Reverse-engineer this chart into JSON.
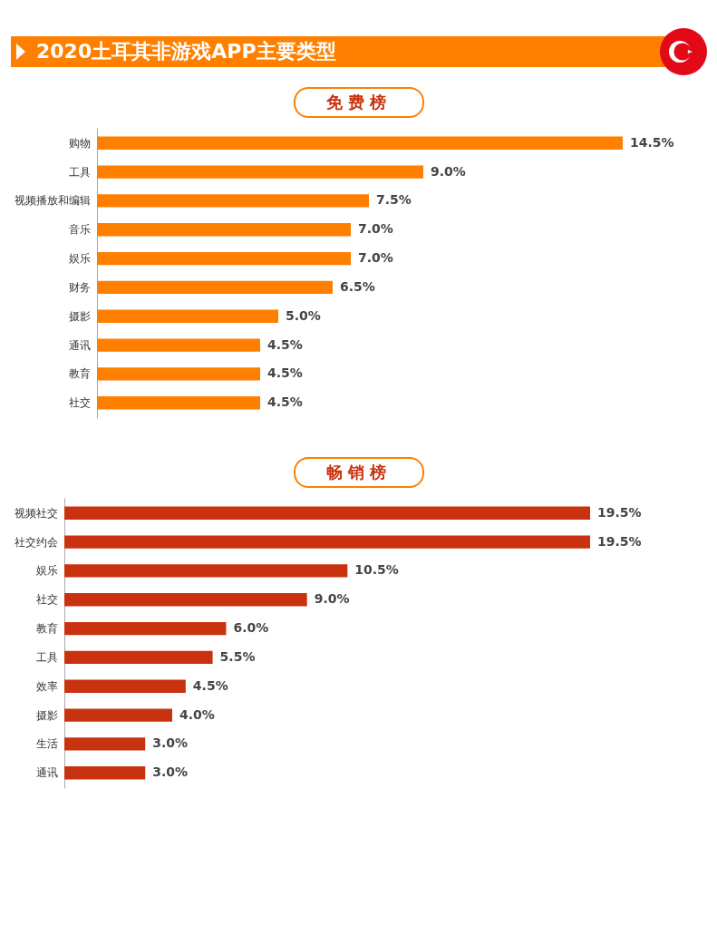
{
  "chart_data": [
    {
      "type": "bar",
      "orientation": "horizontal",
      "title": "2020土耳其非游戏APP主要类型",
      "subtitle": "免费榜",
      "categories": [
        "购物",
        "工具",
        "视频播放和编辑",
        "音乐",
        "娱乐",
        "财务",
        "摄影",
        "通讯",
        "教育",
        "社交"
      ],
      "values": [
        14.5,
        9.0,
        7.5,
        7.0,
        7.0,
        6.5,
        5.0,
        4.5,
        4.5,
        4.5
      ],
      "value_labels": [
        "14.5%",
        "9.0%",
        "7.5%",
        "7.0%",
        "7.0%",
        "6.5%",
        "5.0%",
        "4.5%",
        "4.5%",
        "4.5%"
      ],
      "color": "#ff7f00"
    },
    {
      "type": "bar",
      "orientation": "horizontal",
      "subtitle": "畅销榜",
      "categories": [
        "视频社交",
        "社交约会",
        "娱乐",
        "社交",
        "教育",
        "工具",
        "效率",
        "摄影",
        "生活",
        "通讯"
      ],
      "values": [
        19.5,
        19.5,
        10.5,
        9.0,
        6.0,
        5.5,
        4.5,
        4.0,
        3.0,
        3.0
      ],
      "value_labels": [
        "19.5%",
        "19.5%",
        "10.5%",
        "9.0%",
        "6.0%",
        "5.5%",
        "4.5%",
        "4.0%",
        "3.0%",
        "3.0%"
      ],
      "color": "#c9320e"
    }
  ]
}
